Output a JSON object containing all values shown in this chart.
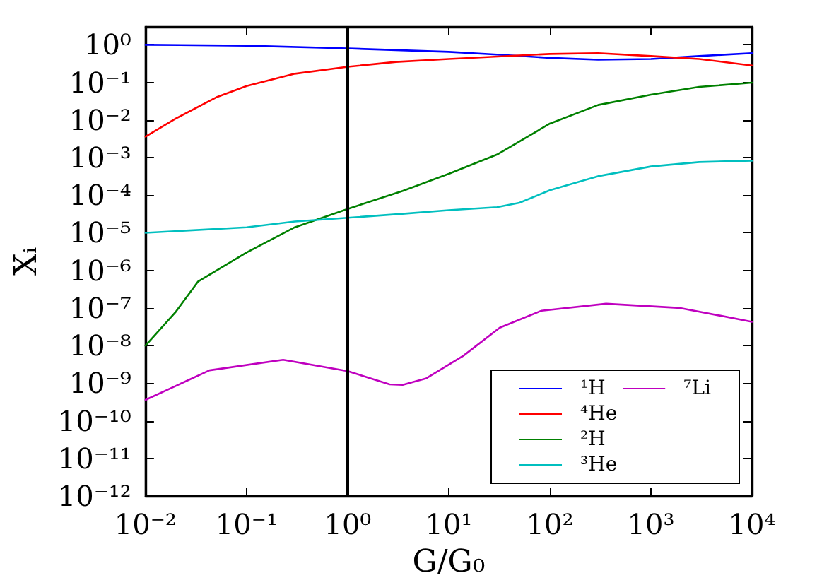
{
  "chart_data": {
    "type": "line",
    "xlabel": "G/G₀",
    "ylabel": "Xᵢ",
    "log": "xy",
    "xlim": [
      0.01,
      10000
    ],
    "ylim": [
      1e-12,
      3
    ],
    "xticks": [
      {
        "value": 0.01,
        "label": "10⁻²"
      },
      {
        "value": 0.1,
        "label": "10⁻¹"
      },
      {
        "value": 1,
        "label": "10⁰"
      },
      {
        "value": 10,
        "label": "10¹"
      },
      {
        "value": 100,
        "label": "10²"
      },
      {
        "value": 1000,
        "label": "10³"
      },
      {
        "value": 10000,
        "label": "10⁴"
      }
    ],
    "yticks": [
      {
        "value": 1e-12,
        "label": "10⁻¹²"
      },
      {
        "value": 1e-11,
        "label": "10⁻¹¹"
      },
      {
        "value": 1e-10,
        "label": "10⁻¹⁰"
      },
      {
        "value": 1e-09,
        "label": "10⁻⁹"
      },
      {
        "value": 1e-08,
        "label": "10⁻⁸"
      },
      {
        "value": 1e-07,
        "label": "10⁻⁷"
      },
      {
        "value": 1e-06,
        "label": "10⁻⁶"
      },
      {
        "value": 1e-05,
        "label": "10⁻⁵"
      },
      {
        "value": 0.0001,
        "label": "10⁻⁴"
      },
      {
        "value": 0.001,
        "label": "10⁻³"
      },
      {
        "value": 0.01,
        "label": "10⁻²"
      },
      {
        "value": 0.1,
        "label": "10⁻¹"
      },
      {
        "value": 1,
        "label": "10⁰"
      }
    ],
    "grid": false,
    "legend": "bottom right",
    "marker": "none",
    "line_style": "solid",
    "ref_lines": [
      {
        "axis": "x",
        "value": 1,
        "color": "#000000"
      }
    ],
    "series": [
      {
        "name": "¹H",
        "color": "#0000ff",
        "x": [
          0.01,
          0.1,
          1,
          10,
          30,
          100,
          300,
          1000,
          3000,
          10000
        ],
        "values": [
          1.0,
          0.95,
          0.8,
          0.65,
          0.55,
          0.45,
          0.4,
          0.42,
          0.5,
          0.6
        ]
      },
      {
        "name": "⁴He",
        "color": "#ff0000",
        "x": [
          0.01,
          0.02,
          0.05,
          0.1,
          0.3,
          1,
          3,
          10,
          100,
          300,
          1000,
          3000,
          10000
        ],
        "values": [
          0.0036,
          0.011,
          0.04,
          0.08,
          0.17,
          0.26,
          0.35,
          0.42,
          0.57,
          0.6,
          0.5,
          0.42,
          0.28
        ]
      },
      {
        "name": "²H",
        "color": "#008000",
        "x": [
          0.01,
          0.02,
          0.033,
          0.1,
          0.3,
          1,
          3.5,
          10,
          30,
          100,
          300,
          1000,
          3000,
          10000
        ],
        "values": [
          1e-08,
          8e-08,
          5e-07,
          3e-06,
          1.4e-05,
          4.3e-05,
          0.00013,
          0.00037,
          0.0012,
          0.008,
          0.025,
          0.047,
          0.076,
          0.098
        ]
      },
      {
        "name": "³He",
        "color": "#00bfbf",
        "x": [
          0.01,
          0.1,
          0.3,
          1,
          3.5,
          10,
          30,
          50,
          100,
          300,
          1000,
          3000,
          10000
        ],
        "values": [
          1e-05,
          1.4e-05,
          2e-05,
          2.5e-05,
          3.2e-05,
          4e-05,
          4.8e-05,
          6.3e-05,
          0.000135,
          0.00032,
          0.00058,
          0.00076,
          0.00083
        ]
      },
      {
        "name": "⁷Li",
        "color": "#bf00bf",
        "x": [
          0.01,
          0.043,
          0.23,
          1,
          2.6,
          3.5,
          6,
          14,
          32,
          83,
          360,
          1950,
          10000
        ],
        "values": [
          3.6e-10,
          2.2e-09,
          4.2e-09,
          2.1e-09,
          9.3e-10,
          9e-10,
          1.35e-09,
          5.4e-09,
          3e-08,
          8.5e-08,
          1.3e-07,
          1e-07,
          4.3e-08
        ]
      }
    ]
  }
}
